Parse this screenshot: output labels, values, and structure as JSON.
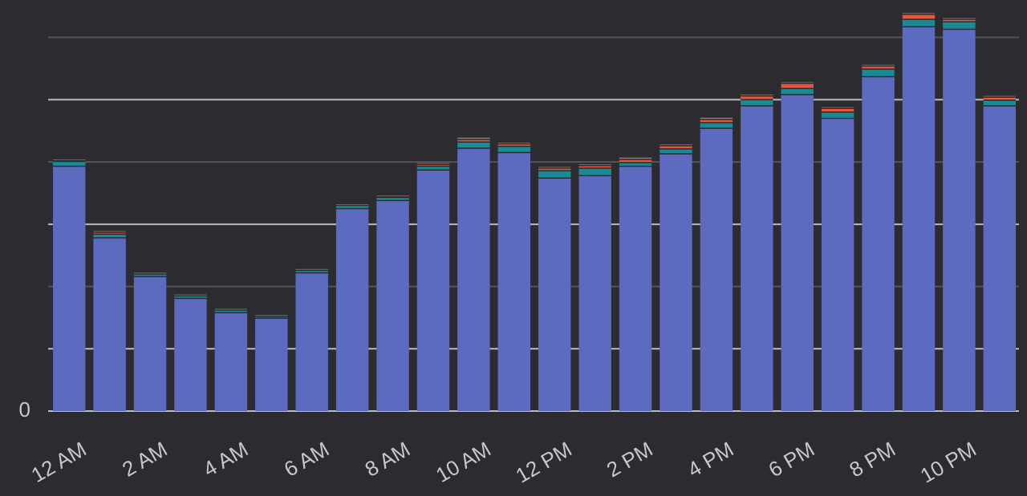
{
  "chart_data": {
    "type": "bar",
    "stacked": true,
    "categories": [
      "12 AM",
      null,
      "2 AM",
      null,
      "4 AM",
      null,
      "6 AM",
      null,
      "8 AM",
      null,
      "10 AM",
      null,
      "12 PM",
      null,
      "2 PM",
      null,
      "4 PM",
      null,
      "6 PM",
      null,
      "8 PM",
      null,
      "10 PM",
      null
    ],
    "series": [
      {
        "color": "#5c6bc0",
        "values": [
          3.93,
          2.78,
          2.16,
          1.81,
          1.58,
          1.49,
          2.22,
          3.25,
          3.38,
          3.87,
          4.22,
          4.15,
          3.74,
          3.78,
          3.93,
          4.13,
          4.54,
          4.9,
          5.08,
          4.7,
          5.37,
          6.17,
          6.13,
          4.9
        ]
      },
      {
        "color": "#1a8a94",
        "values": [
          0.08,
          0.06,
          0.04,
          0.04,
          0.04,
          0.03,
          0.04,
          0.05,
          0.05,
          0.06,
          0.1,
          0.1,
          0.12,
          0.12,
          0.06,
          0.08,
          0.09,
          0.1,
          0.1,
          0.1,
          0.12,
          0.12,
          0.12,
          0.09
        ]
      },
      {
        "color": "#e8553a",
        "values": [
          0.01,
          0.03,
          0,
          0,
          0,
          0,
          0,
          0,
          0.01,
          0.03,
          0.04,
          0.04,
          0.04,
          0.04,
          0.05,
          0.05,
          0.05,
          0.06,
          0.08,
          0.06,
          0.05,
          0.08,
          0.04,
          0.05
        ]
      },
      {
        "color": "#8a7a70",
        "values": [
          0.02,
          0.02,
          0.02,
          0.02,
          0.02,
          0.02,
          0.02,
          0.02,
          0.02,
          0.02,
          0.03,
          0.02,
          0.02,
          0.02,
          0.03,
          0.02,
          0.03,
          0.02,
          0.02,
          0.02,
          0.02,
          0.02,
          0.02,
          0.02
        ]
      }
    ],
    "ylim": [
      0,
      6.6
    ],
    "yticks": [
      0,
      1,
      2,
      3,
      4,
      5,
      6
    ],
    "grid": true
  }
}
